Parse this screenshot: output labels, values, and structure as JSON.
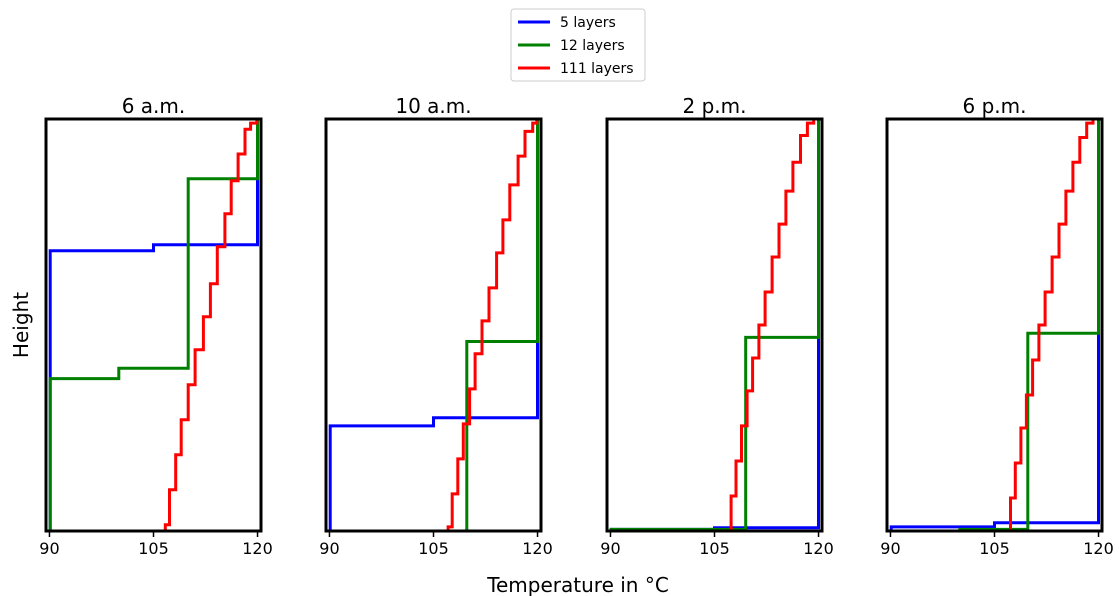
{
  "figure": {
    "xlabel": "Temperature in °C",
    "ylabel": "Height"
  },
  "legend": {
    "placement": "top-center",
    "entries": [
      {
        "label": "5 layers",
        "color": "#0000ff"
      },
      {
        "label": "12 layers",
        "color": "#008000"
      },
      {
        "label": "111 layers",
        "color": "#ff0000"
      }
    ]
  },
  "chart_data": [
    {
      "type": "line",
      "title": "6 a.m.",
      "xlim": [
        89.5,
        120.5
      ],
      "ylim": [
        0,
        1
      ],
      "xticks": [
        90,
        105,
        120
      ],
      "y_ticks_shown": false,
      "series": [
        {
          "name": "5 layers",
          "color": "#0000ff",
          "x": [
            90.1,
            90.1,
            105,
            105,
            120,
            120
          ],
          "y": [
            0,
            0.68,
            0.68,
            0.695,
            0.695,
            1
          ]
        },
        {
          "name": "12 layers",
          "color": "#008000",
          "x": [
            90.1,
            90.1,
            100,
            100,
            110,
            110,
            120,
            120
          ],
          "y": [
            0,
            0.37,
            0.37,
            0.395,
            0.395,
            0.855,
            0.855,
            1
          ]
        },
        {
          "name": "111 layers",
          "color": "#ff0000",
          "x": [
            106.7,
            106.7,
            107.3,
            107.3,
            108.2,
            108.2,
            109,
            109,
            110,
            110,
            111,
            111,
            112.2,
            112.2,
            113.2,
            113.2,
            114.2,
            114.2,
            115.3,
            115.3,
            116.2,
            116.2,
            117.2,
            117.2,
            118.2,
            118.2,
            119,
            119,
            119.9,
            119.9
          ],
          "y": [
            0,
            0.015,
            0.015,
            0.1,
            0.1,
            0.185,
            0.185,
            0.27,
            0.27,
            0.355,
            0.355,
            0.44,
            0.44,
            0.52,
            0.52,
            0.6,
            0.6,
            0.69,
            0.69,
            0.77,
            0.77,
            0.85,
            0.85,
            0.915,
            0.915,
            0.975,
            0.975,
            0.99,
            0.99,
            1
          ]
        }
      ]
    },
    {
      "type": "line",
      "title": "10 a.m.",
      "xlim": [
        89.5,
        120.5
      ],
      "ylim": [
        0,
        1
      ],
      "xticks": [
        90,
        105,
        120
      ],
      "y_ticks_shown": false,
      "series": [
        {
          "name": "5 layers",
          "color": "#0000ff",
          "x": [
            90.1,
            90.1,
            105,
            105,
            120,
            120
          ],
          "y": [
            0,
            0.255,
            0.255,
            0.275,
            0.275,
            1
          ]
        },
        {
          "name": "12 layers",
          "color": "#008000",
          "x": [
            109.8,
            109.8,
            120,
            120
          ],
          "y": [
            0,
            0.46,
            0.46,
            1
          ]
        },
        {
          "name": "111 layers",
          "color": "#ff0000",
          "x": [
            107.1,
            107.1,
            107.7,
            107.7,
            108.5,
            108.5,
            109.3,
            109.3,
            110.2,
            110.2,
            111,
            111,
            112,
            112,
            113,
            113,
            114.1,
            114.1,
            115,
            115,
            116,
            116,
            117.2,
            117.2,
            118.2,
            118.2,
            119.3,
            119.3,
            119.9,
            119.9
          ],
          "y": [
            0,
            0.01,
            0.01,
            0.09,
            0.09,
            0.175,
            0.175,
            0.26,
            0.26,
            0.345,
            0.345,
            0.43,
            0.43,
            0.51,
            0.51,
            0.59,
            0.59,
            0.675,
            0.675,
            0.755,
            0.755,
            0.84,
            0.84,
            0.91,
            0.91,
            0.97,
            0.97,
            0.99,
            0.99,
            1
          ]
        }
      ]
    },
    {
      "type": "line",
      "title": "2 p.m.",
      "xlim": [
        89.5,
        120.5
      ],
      "ylim": [
        0,
        1
      ],
      "xticks": [
        90,
        105,
        120
      ],
      "y_ticks_shown": false,
      "series": [
        {
          "name": "5 layers",
          "color": "#0000ff",
          "x": [
            90.1,
            90.1,
            105,
            105,
            120,
            120
          ],
          "y": [
            0,
            0.004,
            0.004,
            0.008,
            0.008,
            1
          ]
        },
        {
          "name": "12 layers",
          "color": "#008000",
          "x": [
            90.1,
            90.1,
            109.5,
            109.5,
            120,
            120
          ],
          "y": [
            0,
            0.004,
            0.004,
            0.47,
            0.47,
            1
          ]
        },
        {
          "name": "111 layers",
          "color": "#ff0000",
          "x": [
            107.4,
            107.4,
            108.1,
            108.1,
            108.9,
            108.9,
            109.7,
            109.7,
            110.5,
            110.5,
            111.4,
            111.4,
            112.3,
            112.3,
            113.3,
            113.3,
            114.3,
            114.3,
            115.3,
            115.3,
            116.3,
            116.3,
            117.4,
            117.4,
            118.4,
            118.4,
            119.3,
            119.3,
            119.9,
            119.9
          ],
          "y": [
            0,
            0.085,
            0.085,
            0.17,
            0.17,
            0.255,
            0.255,
            0.34,
            0.34,
            0.42,
            0.42,
            0.5,
            0.5,
            0.58,
            0.58,
            0.665,
            0.665,
            0.745,
            0.745,
            0.825,
            0.825,
            0.895,
            0.895,
            0.96,
            0.96,
            0.99,
            0.99,
            1,
            1,
            1
          ]
        }
      ]
    },
    {
      "type": "line",
      "title": "6 p.m.",
      "xlim": [
        89.5,
        120.5
      ],
      "ylim": [
        0,
        1
      ],
      "xticks": [
        90,
        105,
        120
      ],
      "y_ticks_shown": false,
      "series": [
        {
          "name": "5 layers",
          "color": "#0000ff",
          "x": [
            90.1,
            90.1,
            105,
            105,
            120,
            120
          ],
          "y": [
            0,
            0.01,
            0.01,
            0.02,
            0.02,
            1
          ]
        },
        {
          "name": "12 layers",
          "color": "#008000",
          "x": [
            100,
            100,
            109.8,
            109.8,
            120,
            120
          ],
          "y": [
            0,
            0.004,
            0.004,
            0.48,
            0.48,
            1
          ]
        },
        {
          "name": "111 layers",
          "color": "#ff0000",
          "x": [
            107.3,
            107.3,
            108,
            108,
            108.8,
            108.8,
            109.6,
            109.6,
            110.5,
            110.5,
            111.4,
            111.4,
            112.3,
            112.3,
            113.3,
            113.3,
            114.3,
            114.3,
            115.3,
            115.3,
            116.3,
            116.3,
            117.3,
            117.3,
            118.3,
            118.3,
            119.2,
            119.2,
            119.9,
            119.9
          ],
          "y": [
            0,
            0.08,
            0.08,
            0.165,
            0.165,
            0.25,
            0.25,
            0.33,
            0.33,
            0.415,
            0.415,
            0.5,
            0.5,
            0.58,
            0.58,
            0.665,
            0.665,
            0.745,
            0.745,
            0.825,
            0.825,
            0.895,
            0.895,
            0.955,
            0.955,
            0.99,
            0.99,
            1,
            1,
            1
          ]
        }
      ]
    }
  ]
}
